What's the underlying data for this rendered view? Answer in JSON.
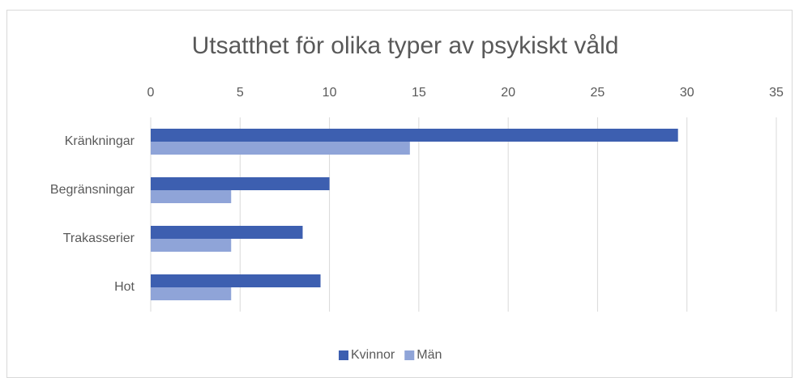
{
  "chart_data": {
    "type": "hbar",
    "title": "Utsatthet för olika typer av psykiskt våld",
    "categories": [
      "Kränkningar",
      "Begränsningar",
      "Trakasserier",
      "Hot"
    ],
    "series": [
      {
        "name": "Kvinnor",
        "color": "#3d5fb0",
        "values": [
          29.5,
          10,
          8.5,
          9.5
        ]
      },
      {
        "name": "Män",
        "color": "#8fa4d8",
        "values": [
          14.5,
          4.5,
          4.5,
          4.5
        ]
      }
    ],
    "xlim": [
      0,
      35
    ],
    "xticks": [
      0,
      5,
      10,
      15,
      20,
      25,
      30,
      35
    ],
    "grid": true,
    "legend": "bottom"
  }
}
